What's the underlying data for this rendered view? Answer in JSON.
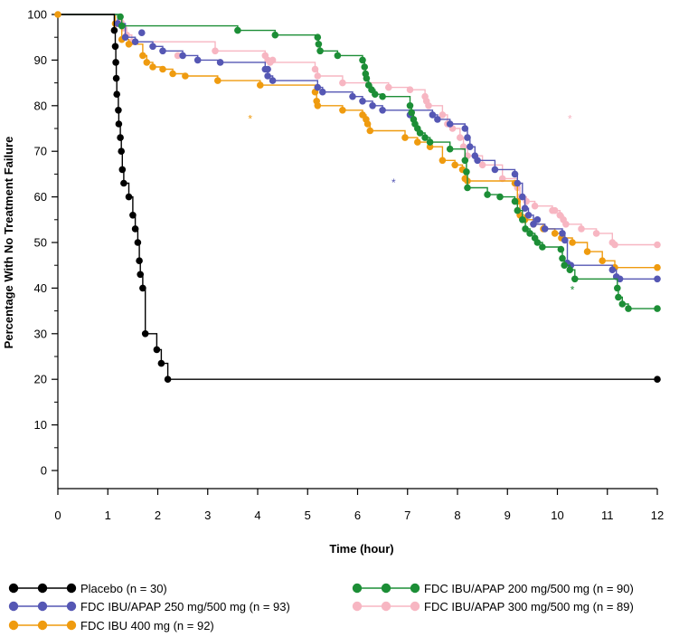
{
  "chart_data": {
    "type": "line",
    "subtype": "kaplan-meier step",
    "xlabel": "Time (hour)",
    "ylabel": "Percentage With No Treatment Failure",
    "xlim": [
      0,
      12
    ],
    "ylim": [
      0,
      100
    ],
    "xticks": [
      "0",
      "1",
      "2",
      "3",
      "4",
      "5",
      "6",
      "7",
      "8",
      "9",
      "10",
      "11",
      "12"
    ],
    "yticks": [
      "0",
      "10",
      "20",
      "30",
      "40",
      "50",
      "60",
      "70",
      "80",
      "90",
      "100"
    ],
    "grid": false,
    "legend_position": "bottom",
    "series": [
      {
        "name": "Placebo (n = 30)",
        "color": "#000000",
        "points": [
          [
            0,
            100
          ],
          [
            1.13,
            96.5
          ],
          [
            1.15,
            93
          ],
          [
            1.16,
            89.5
          ],
          [
            1.17,
            86
          ],
          [
            1.18,
            82.5
          ],
          [
            1.21,
            79
          ],
          [
            1.22,
            76
          ],
          [
            1.25,
            73
          ],
          [
            1.27,
            70
          ],
          [
            1.29,
            66
          ],
          [
            1.32,
            63
          ],
          [
            1.42,
            60
          ],
          [
            1.5,
            56
          ],
          [
            1.55,
            53
          ],
          [
            1.6,
            50
          ],
          [
            1.63,
            46
          ],
          [
            1.65,
            43
          ],
          [
            1.7,
            40
          ],
          [
            1.75,
            30
          ],
          [
            1.98,
            26.5
          ],
          [
            2.07,
            23.5
          ],
          [
            2.2,
            20
          ],
          [
            12,
            20
          ]
        ],
        "censored": [
          [
            12,
            20
          ]
        ]
      },
      {
        "name": "FDC IBU/APAP 250 mg/500 mg (n = 93)",
        "color": "#5557b4",
        "points": [
          [
            0,
            100
          ],
          [
            1.2,
            98
          ],
          [
            1.35,
            95
          ],
          [
            1.55,
            94
          ],
          [
            1.9,
            93
          ],
          [
            2.1,
            92
          ],
          [
            2.5,
            91
          ],
          [
            2.8,
            90
          ],
          [
            3.25,
            89.5
          ],
          [
            4.15,
            88
          ],
          [
            4.2,
            86.5
          ],
          [
            4.3,
            85.5
          ],
          [
            5.2,
            84
          ],
          [
            5.3,
            83
          ],
          [
            5.9,
            82
          ],
          [
            6.1,
            81
          ],
          [
            6.3,
            80
          ],
          [
            6.5,
            79
          ],
          [
            7.5,
            78
          ],
          [
            7.6,
            77
          ],
          [
            7.85,
            76
          ],
          [
            8.15,
            75
          ],
          [
            8.2,
            73
          ],
          [
            8.25,
            71
          ],
          [
            8.35,
            69
          ],
          [
            8.4,
            68
          ],
          [
            8.75,
            66
          ],
          [
            9.15,
            65
          ],
          [
            9.2,
            63
          ],
          [
            9.3,
            60
          ],
          [
            9.35,
            57.5
          ],
          [
            9.42,
            56
          ],
          [
            9.52,
            54
          ],
          [
            9.75,
            53
          ],
          [
            10.1,
            52
          ],
          [
            10.15,
            50.5
          ],
          [
            10.2,
            45.5
          ],
          [
            10.27,
            45
          ],
          [
            11.1,
            44
          ],
          [
            11.18,
            42.5
          ],
          [
            11.25,
            42
          ],
          [
            12,
            42
          ]
        ],
        "censored": [
          [
            1.68,
            96
          ],
          [
            4.2,
            88
          ],
          [
            7.05,
            78
          ],
          [
            9.6,
            55
          ],
          [
            12,
            42
          ]
        ]
      },
      {
        "name": "FDC IBU 400 mg (n = 92)",
        "color": "#ef9b0f",
        "points": [
          [
            0,
            100
          ],
          [
            1.15,
            98
          ],
          [
            1.28,
            94.5
          ],
          [
            1.42,
            93.5
          ],
          [
            1.7,
            91
          ],
          [
            1.78,
            89.5
          ],
          [
            1.9,
            88.5
          ],
          [
            2.1,
            88
          ],
          [
            2.3,
            87
          ],
          [
            2.55,
            86.5
          ],
          [
            3.2,
            85.5
          ],
          [
            4.05,
            84.5
          ],
          [
            5.15,
            83
          ],
          [
            5.18,
            81
          ],
          [
            5.2,
            80
          ],
          [
            5.7,
            79
          ],
          [
            6.1,
            78
          ],
          [
            6.17,
            77
          ],
          [
            6.2,
            76
          ],
          [
            6.25,
            74.5
          ],
          [
            6.95,
            73
          ],
          [
            7.2,
            72
          ],
          [
            7.45,
            71
          ],
          [
            7.7,
            68
          ],
          [
            7.95,
            67
          ],
          [
            8.1,
            66
          ],
          [
            8.15,
            64
          ],
          [
            8.2,
            63.5
          ],
          [
            9.15,
            63
          ],
          [
            9.2,
            59
          ],
          [
            9.25,
            56
          ],
          [
            9.35,
            55
          ],
          [
            9.52,
            54
          ],
          [
            9.72,
            53
          ],
          [
            9.95,
            52
          ],
          [
            10.08,
            51
          ],
          [
            10.3,
            50
          ],
          [
            10.6,
            48
          ],
          [
            10.9,
            46
          ],
          [
            11.15,
            44.5
          ],
          [
            12,
            44.5
          ]
        ],
        "censored": [
          [
            12,
            44.5
          ]
        ]
      },
      {
        "name": "FDC IBU/APAP 200 mg/500 mg (n = 90)",
        "color": "#1c8e36",
        "points": [
          [
            0,
            100
          ],
          [
            1.25,
            99.5
          ],
          [
            1.28,
            97.5
          ],
          [
            3.6,
            96.5
          ],
          [
            4.35,
            95.5
          ],
          [
            5.2,
            95
          ],
          [
            5.22,
            93.5
          ],
          [
            5.25,
            92
          ],
          [
            5.6,
            91
          ],
          [
            6.1,
            90
          ],
          [
            6.14,
            88.5
          ],
          [
            6.16,
            87
          ],
          [
            6.18,
            86
          ],
          [
            6.22,
            84.5
          ],
          [
            6.28,
            83.5
          ],
          [
            6.35,
            82.5
          ],
          [
            6.5,
            82
          ],
          [
            7.05,
            80
          ],
          [
            7.08,
            78.5
          ],
          [
            7.12,
            77
          ],
          [
            7.15,
            76
          ],
          [
            7.2,
            75
          ],
          [
            7.25,
            74
          ],
          [
            7.35,
            73
          ],
          [
            7.45,
            72
          ],
          [
            7.85,
            70.5
          ],
          [
            8.15,
            68
          ],
          [
            8.18,
            65.5
          ],
          [
            8.2,
            62
          ],
          [
            8.6,
            60.5
          ],
          [
            8.85,
            60
          ],
          [
            9.15,
            59
          ],
          [
            9.2,
            57
          ],
          [
            9.3,
            55
          ],
          [
            9.36,
            53
          ],
          [
            9.45,
            52
          ],
          [
            9.55,
            51
          ],
          [
            9.6,
            50
          ],
          [
            9.7,
            49
          ],
          [
            10.07,
            48.5
          ],
          [
            10.1,
            46.5
          ],
          [
            10.14,
            45
          ],
          [
            10.25,
            44
          ],
          [
            10.35,
            42
          ],
          [
            11.2,
            40
          ],
          [
            11.22,
            38
          ],
          [
            11.3,
            36.5
          ],
          [
            11.42,
            35.5
          ],
          [
            12,
            35.5
          ]
        ],
        "censored": [
          [
            12,
            35.5
          ]
        ]
      },
      {
        "name": "FDC IBU/APAP 300 mg/500 mg (n = 89)",
        "color": "#f7b6c2",
        "points": [
          [
            0,
            100
          ],
          [
            1.25,
            98.5
          ],
          [
            1.32,
            97
          ],
          [
            1.38,
            95.5
          ],
          [
            1.48,
            94
          ],
          [
            3.15,
            92
          ],
          [
            4.15,
            91
          ],
          [
            4.2,
            90
          ],
          [
            4.25,
            89.5
          ],
          [
            5.15,
            88
          ],
          [
            5.2,
            86.5
          ],
          [
            5.7,
            85
          ],
          [
            6.62,
            84
          ],
          [
            7.05,
            83.5
          ],
          [
            7.35,
            82
          ],
          [
            7.38,
            81
          ],
          [
            7.42,
            80
          ],
          [
            7.7,
            78
          ],
          [
            7.8,
            76
          ],
          [
            7.9,
            75
          ],
          [
            8.05,
            73
          ],
          [
            8.12,
            71
          ],
          [
            8.2,
            69
          ],
          [
            8.5,
            67
          ],
          [
            8.9,
            64
          ],
          [
            9.2,
            62
          ],
          [
            9.25,
            60
          ],
          [
            9.38,
            59
          ],
          [
            9.55,
            58
          ],
          [
            9.9,
            57
          ],
          [
            10.05,
            56
          ],
          [
            10.12,
            55
          ],
          [
            10.17,
            54
          ],
          [
            10.48,
            53
          ],
          [
            10.78,
            52
          ],
          [
            11.1,
            50
          ],
          [
            11.15,
            49.5
          ],
          [
            12,
            49.5
          ]
        ],
        "censored": [
          [
            2.4,
            91
          ],
          [
            4.3,
            90
          ],
          [
            9.95,
            57
          ],
          [
            12,
            49.5
          ]
        ]
      }
    ],
    "annotations": [
      {
        "text": "*",
        "x": 3.85,
        "y": 77.5,
        "color": "#ef9b0f"
      },
      {
        "text": "*",
        "x": 10.25,
        "y": 77.5,
        "color": "#f7b6c2"
      },
      {
        "text": "*",
        "x": 6.72,
        "y": 63.5,
        "color": "#5557b4"
      },
      {
        "text": "*",
        "x": 10.3,
        "y": 40,
        "color": "#1c8e36"
      }
    ],
    "legend": [
      {
        "label": "Placebo (n = 30)",
        "color": "#000000",
        "series": 0
      },
      {
        "label": "FDC IBU/APAP 250 mg/500 mg (n = 93)",
        "color": "#5557b4",
        "series": 1
      },
      {
        "label": "FDC IBU 400 mg (n = 92)",
        "color": "#ef9b0f",
        "series": 2
      },
      {
        "label": "FDC IBU/APAP 200 mg/500 mg (n = 90)",
        "color": "#1c8e36",
        "series": 3
      },
      {
        "label": "FDC IBU/APAP 300 mg/500 mg (n = 89)",
        "color": "#f7b6c2",
        "series": 4
      }
    ]
  }
}
